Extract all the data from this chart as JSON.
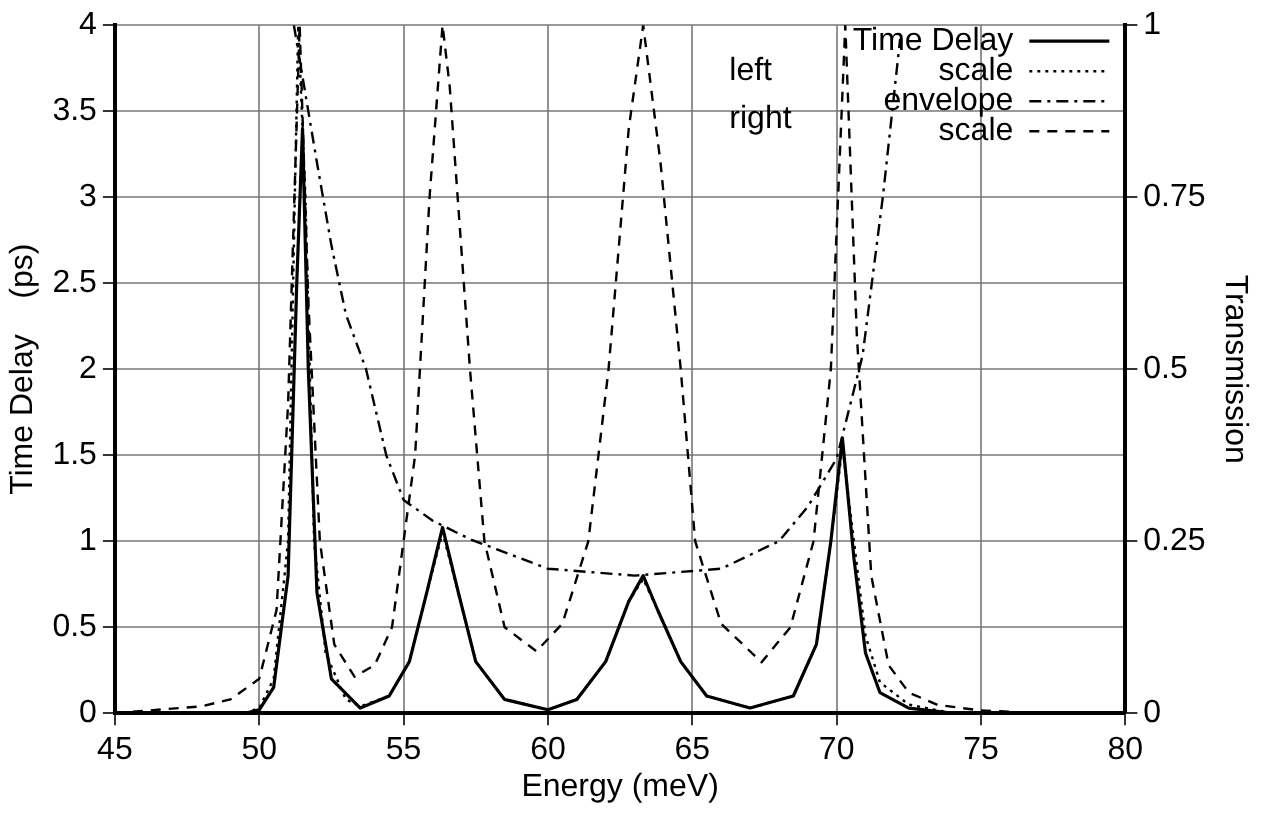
{
  "chart_data": {
    "type": "line",
    "xlabel": "Energy (meV)",
    "ylabel": "Time Delay    (ps)",
    "y2label": "Transmission",
    "xlim": [
      45,
      80
    ],
    "xticks": [
      45,
      50,
      55,
      60,
      65,
      70,
      75,
      80
    ],
    "ylim": [
      0,
      4
    ],
    "yticks": [
      0,
      0.5,
      1,
      1.5,
      2,
      2.5,
      3,
      3.5,
      4
    ],
    "y2lim": [
      0,
      1
    ],
    "y2ticks": [
      0,
      0.25,
      0.5,
      0.75,
      1
    ],
    "grid": true,
    "legend": "top right",
    "marker": "none",
    "annotations": [
      "left",
      "right"
    ],
    "series": [
      {
        "name": "Time Delay",
        "color": "#000000",
        "line_style": "solid",
        "x": [
          49.5,
          50,
          50.5,
          51,
          51.3,
          51.5,
          51.7,
          52,
          52.5,
          53.5,
          54.5,
          55.2,
          55.8,
          56.35,
          56.9,
          57.5,
          58.5,
          60,
          61,
          62,
          62.8,
          63.3,
          63.8,
          64.6,
          65.5,
          67,
          68.5,
          69.3,
          69.8,
          70.2,
          70.6,
          71,
          71.5,
          72.5,
          74,
          80
        ],
        "values": [
          0,
          0.02,
          0.15,
          0.8,
          2.5,
          3.4,
          2.0,
          0.7,
          0.2,
          0.03,
          0.1,
          0.3,
          0.7,
          1.08,
          0.7,
          0.3,
          0.08,
          0.02,
          0.08,
          0.3,
          0.65,
          0.8,
          0.6,
          0.3,
          0.1,
          0.03,
          0.1,
          0.4,
          1.0,
          1.6,
          0.9,
          0.35,
          0.12,
          0.03,
          0,
          0
        ]
      },
      {
        "name": "scale",
        "color": "#000000",
        "line_style": "dotted",
        "x": [
          49.5,
          50,
          50.5,
          51,
          51.35,
          51.6,
          51.9,
          52.3,
          53,
          53.5,
          54.5,
          55.2,
          55.8,
          56.35,
          56.9,
          57.5,
          58.5,
          60,
          61,
          62,
          62.8,
          63.3,
          63.8,
          64.6,
          65.5,
          67,
          68.5,
          69.3,
          69.8,
          70.2,
          70.6,
          71,
          71.5,
          72.5,
          74,
          80
        ],
        "values": [
          0,
          0.03,
          0.2,
          1.0,
          4.0,
          3.0,
          1.0,
          0.35,
          0.08,
          0.04,
          0.1,
          0.3,
          0.7,
          1.05,
          0.7,
          0.3,
          0.08,
          0.02,
          0.08,
          0.3,
          0.65,
          0.78,
          0.6,
          0.3,
          0.1,
          0.03,
          0.1,
          0.4,
          1.0,
          1.55,
          1.0,
          0.45,
          0.18,
          0.05,
          0,
          0
        ]
      },
      {
        "name": "envelope",
        "color": "#000000",
        "line_style": "dashdot",
        "axis": "y2",
        "x": [
          51.2,
          51.6,
          52,
          52.5,
          53,
          53.7,
          54.4,
          55,
          56,
          57.3,
          60,
          63,
          66,
          68,
          69,
          70,
          70.9,
          71.6,
          72.2
        ],
        "values": [
          1.0,
          0.9,
          0.8,
          0.68,
          0.58,
          0.5,
          0.375,
          0.31,
          0.28,
          0.253,
          0.21,
          0.2,
          0.21,
          0.25,
          0.3,
          0.37,
          0.52,
          0.75,
          0.98
        ]
      },
      {
        "name": "scale",
        "color": "#000000",
        "line_style": "dashed",
        "axis": "y2",
        "x": [
          45,
          48,
          49,
          50,
          50.6,
          51,
          51.4,
          51.7,
          52.1,
          52.6,
          53.3,
          54,
          54.6,
          55.4,
          55.9,
          56.35,
          56.6,
          57.3,
          57.8,
          58.5,
          59.6,
          60.5,
          61.4,
          62.1,
          62.8,
          63.3,
          63.9,
          64.6,
          65.1,
          66,
          67.4,
          68.4,
          69.2,
          69.8,
          70.3,
          70.7,
          71.2,
          71.8,
          72.5,
          73.5,
          75,
          77,
          80
        ],
        "values": [
          0,
          0.01,
          0.02,
          0.05,
          0.15,
          0.45,
          1.0,
          0.6,
          0.25,
          0.1,
          0.053,
          0.07,
          0.125,
          0.375,
          0.75,
          1.0,
          0.91,
          0.5,
          0.25,
          0.125,
          0.09,
          0.13,
          0.25,
          0.5,
          0.85,
          1.0,
          0.8,
          0.5,
          0.25,
          0.13,
          0.074,
          0.125,
          0.25,
          0.5,
          1.0,
          0.55,
          0.2,
          0.07,
          0.03,
          0.012,
          0.004,
          0,
          0
        ]
      }
    ]
  }
}
